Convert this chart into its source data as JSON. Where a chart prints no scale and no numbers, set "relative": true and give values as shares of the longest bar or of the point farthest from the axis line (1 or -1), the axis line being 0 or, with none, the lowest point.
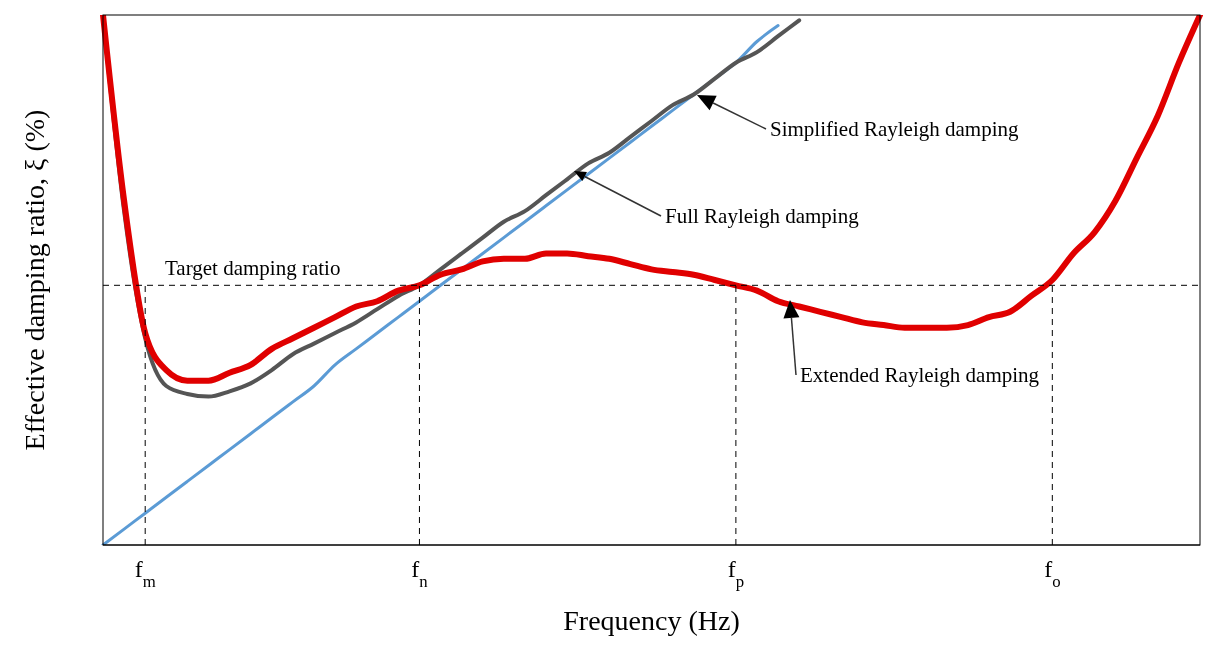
{
  "chart_data": {
    "type": "line",
    "relative": true,
    "xlabel": "Frequency (Hz)",
    "ylabel": "Effective damping ratio, ξ (%)",
    "categories": [
      null,
      null,
      "f$_{m}$",
      null,
      null,
      null,
      null,
      null,
      null,
      null,
      null,
      null,
      null,
      null,
      null,
      "f$_{n}$",
      null,
      null,
      null,
      null,
      null,
      null,
      null,
      null,
      null,
      null,
      null,
      null,
      null,
      null,
      "f$_{p}$",
      null,
      null,
      null,
      null,
      null,
      null,
      null,
      null,
      null,
      null,
      null,
      null,
      null,
      null,
      "f$_{o}$",
      null,
      null,
      null,
      null,
      null,
      null,
      null
    ],
    "grid": false,
    "marker": "none",
    "line_style": "solid",
    "series": [
      {
        "color": "#5b9bd5",
        "values": [
          0,
          0.03,
          0.06,
          0.09,
          0.12,
          0.15,
          0.18,
          0.21,
          0.24,
          0.27,
          0.3,
          0.34,
          0.37,
          0.4,
          0.43,
          0.46,
          0.49,
          0.52,
          0.55,
          0.58,
          0.61,
          0.64,
          0.67,
          0.7,
          0.73,
          0.76,
          0.79,
          0.82,
          0.85,
          0.88,
          0.91,
          0.95,
          0.98,
          null,
          null,
          null,
          null,
          null,
          null,
          null,
          null,
          null,
          null,
          null,
          null,
          null,
          null,
          null,
          null,
          null,
          null,
          null,
          null
        ]
      },
      {
        "color": "#555555",
        "values": [
          1.0,
          0.63,
          0.39,
          0.3,
          0.285,
          0.28,
          0.29,
          0.305,
          0.33,
          0.36,
          0.38,
          0.4,
          0.42,
          0.445,
          0.47,
          0.49,
          0.52,
          0.55,
          0.58,
          0.61,
          0.63,
          0.66,
          0.69,
          0.72,
          0.74,
          0.77,
          0.8,
          0.83,
          0.85,
          0.88,
          0.91,
          0.93,
          0.96,
          0.99,
          null,
          null,
          null,
          null,
          null,
          null,
          null,
          null,
          null,
          null,
          null,
          null,
          null,
          null,
          null,
          null,
          null,
          null,
          null
        ]
      },
      {
        "color": "#e00000",
        "values": [
          1.0,
          0.65,
          0.4,
          0.33,
          0.31,
          0.31,
          0.325,
          0.34,
          0.37,
          0.39,
          0.41,
          0.43,
          0.45,
          0.46,
          0.48,
          0.49,
          0.51,
          0.52,
          0.535,
          0.54,
          0.54,
          0.55,
          0.55,
          0.545,
          0.54,
          0.53,
          0.52,
          0.515,
          0.51,
          0.5,
          0.49,
          0.48,
          0.46,
          0.45,
          0.44,
          0.43,
          0.42,
          0.415,
          0.41,
          0.41,
          0.41,
          0.415,
          0.43,
          0.44,
          0.47,
          0.5,
          0.55,
          0.59,
          0.65,
          0.73,
          0.81,
          0.91,
          1.0
        ]
      }
    ],
    "ref_lines": [
      {
        "axis": "y",
        "value": 0.49,
        "label": "Target damping ratio",
        "color": "#000000",
        "line_style": "dashed"
      },
      {
        "axis": "x",
        "value": "f$_{m}$",
        "color": "#000000",
        "line_style": "dashed"
      },
      {
        "axis": "x",
        "value": "f$_{n}$",
        "color": "#000000",
        "line_style": "dashed"
      },
      {
        "axis": "x",
        "value": "f$_{p}$",
        "color": "#000000",
        "line_style": "dashed"
      },
      {
        "axis": "x",
        "value": "f$_{o}$",
        "color": "#000000",
        "line_style": "dashed"
      }
    ],
    "annotations": [
      "Simplified Rayleigh damping",
      "Full Rayleigh damping",
      "Extended Rayleigh damping"
    ]
  }
}
